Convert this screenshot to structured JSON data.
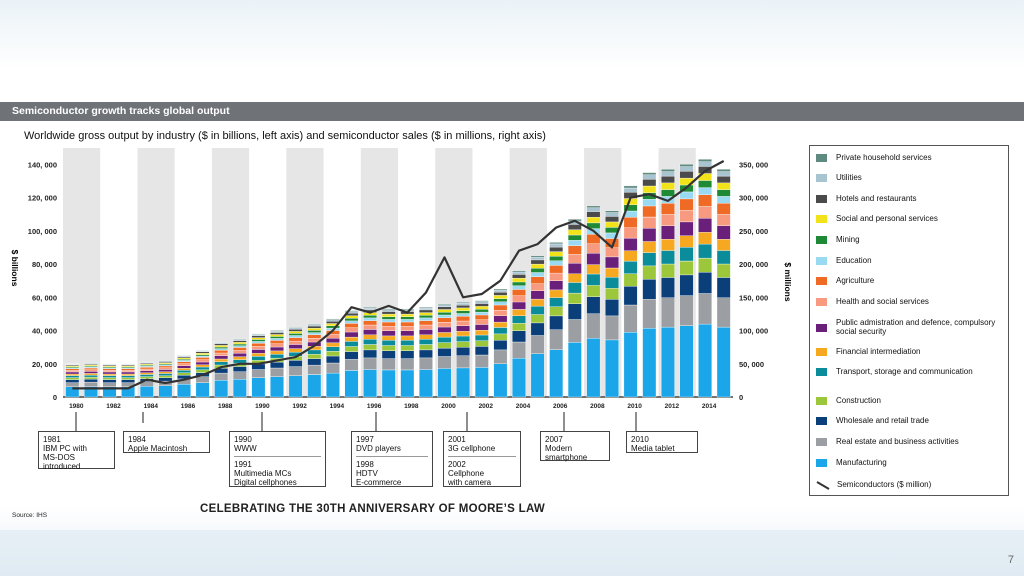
{
  "header": {
    "title": "Semiconductor growth tracks global output",
    "subtitle": "Worldwide gross output by industry ($ in billions, left axis) and semiconductor sales ($ in millions, right axis)"
  },
  "footer": {
    "banner": "CELEBRATING THE 30TH ANNIVERSARY OF MOORE’S LAW",
    "source": "Source: IHS",
    "page_number": "7"
  },
  "annotations": [
    {
      "lines": [
        "1981",
        "IBM PC with",
        "MS-DOS",
        "introduced"
      ]
    },
    {
      "lines": [
        "1984",
        "Apple Macintosh"
      ]
    },
    {
      "lines": [
        "1990",
        "WWW"
      ],
      "lines2": [
        "1991",
        "Multimedia MCs",
        "Digital cellphones"
      ]
    },
    {
      "lines": [
        "1997",
        "DVD players"
      ],
      "lines2": [
        "1998",
        "HDTV",
        "E-commerce"
      ]
    },
    {
      "lines": [
        "2001",
        "3G cellphone"
      ],
      "lines2": [
        "2002",
        "Cellphone",
        "with camera"
      ]
    },
    {
      "lines": [
        "2007",
        "Modern",
        "smartphone"
      ]
    },
    {
      "lines": [
        "2010",
        "Media tablet"
      ]
    }
  ],
  "chart_data": {
    "type": "bar",
    "stacked": true,
    "title": "Worldwide gross output by industry ($ in billions, left axis) and semiconductor sales ($ in millions, right axis)",
    "ylabel": "$ billions",
    "y2label": "$ millions",
    "ylim": [
      0,
      145000
    ],
    "y2lim": [
      0,
      362500
    ],
    "yticks": [
      "0",
      "20, 000",
      "40, 000",
      "60, 000",
      "80, 000",
      "100, 000",
      "120, 000",
      "140, 000"
    ],
    "y2ticks": [
      "0",
      "50, 000",
      "100, 000",
      "150, 000",
      "200, 000",
      "250, 000",
      "300, 000",
      "350, 000"
    ],
    "xticks": [
      "1980",
      "1982",
      "1984",
      "1986",
      "1988",
      "1990",
      "1992",
      "1994",
      "1996",
      "1998",
      "2000",
      "2002",
      "2004",
      "2006",
      "2008",
      "2010",
      "2012",
      "2014"
    ],
    "years": [
      1980,
      1981,
      1982,
      1983,
      1984,
      1985,
      1986,
      1987,
      1988,
      1989,
      1990,
      1991,
      1992,
      1993,
      1994,
      1995,
      1996,
      1997,
      1998,
      1999,
      2000,
      2001,
      2002,
      2003,
      2004,
      2005,
      2006,
      2007,
      2008,
      2009,
      2010,
      2011,
      2012,
      2013,
      2014,
      2015
    ],
    "totals": [
      20000,
      20500,
      20000,
      20000,
      21000,
      22000,
      25000,
      28000,
      33000,
      35000,
      38000,
      40000,
      42000,
      44000,
      47000,
      52000,
      54000,
      53000,
      53000,
      54000,
      56000,
      57000,
      58000,
      65000,
      76000,
      85000,
      93000,
      107000,
      115000,
      112000,
      127000,
      135000,
      137000,
      140000,
      143000,
      137000
    ],
    "series": [
      {
        "name": "Manufacturing",
        "color": "#1aa6e8",
        "share": 0.31
      },
      {
        "name": "Real estate and business activities",
        "color": "#9b9ea2",
        "share": 0.13
      },
      {
        "name": "Wholesale and retail trade",
        "color": "#0b3f7a",
        "share": 0.09
      },
      {
        "name": "Construction",
        "color": "#9cc73a",
        "share": 0.06
      },
      {
        "name": "Transport, storage and communication",
        "color": "#0a8c9a",
        "share": 0.06
      },
      {
        "name": "Financial intermediation",
        "color": "#f5a820",
        "share": 0.05
      },
      {
        "name": "Public admistration and defence, compulsory social security",
        "color": "#6a1f7a",
        "share": 0.06
      },
      {
        "name": "Health and social services",
        "color": "#f79a80",
        "share": 0.05
      },
      {
        "name": "Agriculture",
        "color": "#ef6a24",
        "share": 0.05
      },
      {
        "name": "Education",
        "color": "#9ad9f2",
        "share": 0.03
      },
      {
        "name": "Mining",
        "color": "#1e8a36",
        "share": 0.03
      },
      {
        "name": "Social and personal services",
        "color": "#f2e21a",
        "share": 0.03
      },
      {
        "name": "Hotels and restaurants",
        "color": "#4b4b4b",
        "share": 0.03
      },
      {
        "name": "Utilities",
        "color": "#a9c4d1",
        "share": 0.02
      },
      {
        "name": "Private household services",
        "color": "#5f8a80",
        "share": 0.01
      }
    ],
    "line": {
      "name": "Semiconductors ($ million)",
      "color": "#333333",
      "values": [
        13000,
        13000,
        13000,
        13000,
        26000,
        21000,
        26000,
        33000,
        45000,
        50000,
        50000,
        55000,
        60000,
        77000,
        100000,
        135000,
        127000,
        137000,
        127000,
        157000,
        210000,
        150000,
        155000,
        175000,
        220000,
        230000,
        255000,
        265000,
        250000,
        225000,
        300000,
        305000,
        295000,
        315000,
        340000,
        355000
      ]
    }
  }
}
